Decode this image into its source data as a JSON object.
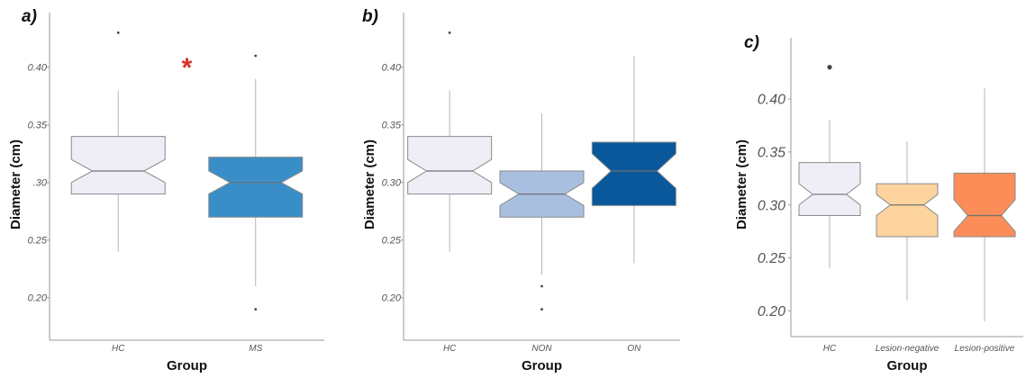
{
  "chart_data": [
    {
      "type": "boxplot",
      "panel_label": "a)",
      "xlabel": "Group",
      "ylabel": "Diameter (cm)",
      "ylim": [
        0.185,
        0.435
      ],
      "yticks": [
        0.2,
        0.25,
        0.3,
        0.35,
        0.4
      ],
      "ytick_labels": [
        "0.20",
        "0.25",
        ".30",
        "0.35",
        "0.40"
      ],
      "categories": [
        "HC",
        "MS"
      ],
      "boxes": [
        {
          "category": "HC",
          "whisker_low": 0.24,
          "q1": 0.29,
          "median": 0.31,
          "q3": 0.34,
          "whisker_high": 0.38,
          "notch_low": 0.3,
          "notch_high": 0.32,
          "fill": "#efeef7",
          "outliers": [
            0.43
          ]
        },
        {
          "category": "MS",
          "whisker_low": 0.21,
          "q1": 0.27,
          "median": 0.3,
          "q3": 0.322,
          "whisker_high": 0.39,
          "notch_low": 0.29,
          "notch_high": 0.31,
          "fill": "#3a8ec8",
          "outliers": [
            0.19,
            0.41
          ]
        }
      ],
      "annotations": [
        {
          "text": "*",
          "x_between": [
            0,
            1
          ],
          "y": 0.405,
          "color": "#d93328"
        }
      ]
    },
    {
      "type": "boxplot",
      "panel_label": "b)",
      "xlabel": "Group",
      "ylabel": "Diameter (cm)",
      "ylim": [
        0.185,
        0.435
      ],
      "yticks": [
        0.2,
        0.25,
        0.3,
        0.35,
        0.4
      ],
      "ytick_labels": [
        "0.20",
        "0.25",
        "0.30",
        "0.35",
        "0.40"
      ],
      "categories": [
        "HC",
        "NON",
        "ON"
      ],
      "boxes": [
        {
          "category": "HC",
          "whisker_low": 0.24,
          "q1": 0.29,
          "median": 0.31,
          "q3": 0.34,
          "whisker_high": 0.38,
          "notch_low": 0.3,
          "notch_high": 0.32,
          "fill": "#efeef7",
          "outliers": [
            0.43
          ]
        },
        {
          "category": "NON",
          "whisker_low": 0.22,
          "q1": 0.27,
          "median": 0.29,
          "q3": 0.31,
          "whisker_high": 0.36,
          "notch_low": 0.28,
          "notch_high": 0.3,
          "fill": "#a9bfdf",
          "outliers": [
            0.19,
            0.21
          ]
        },
        {
          "category": "ON",
          "whisker_low": 0.23,
          "q1": 0.28,
          "median": 0.31,
          "q3": 0.335,
          "whisker_high": 0.41,
          "notch_low": 0.295,
          "notch_high": 0.325,
          "fill": "#08589b",
          "outliers": []
        }
      ],
      "annotations": []
    },
    {
      "type": "boxplot",
      "panel_label": "c)",
      "xlabel": "Group",
      "ylabel": "Diameter (cm)",
      "ylim": [
        0.18,
        0.445
      ],
      "yticks": [
        0.2,
        0.25,
        0.3,
        0.35,
        0.4
      ],
      "ytick_labels": [
        "0.20",
        "0.25",
        "0.30",
        "0.35",
        "0.40"
      ],
      "categories": [
        "HC",
        "Lesion-negative",
        "Lesion-positive"
      ],
      "boxes": [
        {
          "category": "HC",
          "whisker_low": 0.24,
          "q1": 0.29,
          "median": 0.31,
          "q3": 0.34,
          "whisker_high": 0.38,
          "notch_low": 0.3,
          "notch_high": 0.32,
          "fill": "#efeef7",
          "outliers": [
            0.43
          ]
        },
        {
          "category": "Lesion-negative",
          "whisker_low": 0.21,
          "q1": 0.27,
          "median": 0.3,
          "q3": 0.32,
          "whisker_high": 0.36,
          "notch_low": 0.29,
          "notch_high": 0.31,
          "fill": "#fdd49e",
          "outliers": []
        },
        {
          "category": "Lesion-positive",
          "whisker_low": 0.19,
          "q1": 0.27,
          "median": 0.29,
          "q3": 0.33,
          "whisker_high": 0.41,
          "notch_low": 0.275,
          "notch_high": 0.305,
          "fill": "#fc8d59",
          "outliers": []
        }
      ],
      "annotations": []
    }
  ],
  "colors": {
    "axis": "#9a9a9a",
    "box_stroke": "#8a8a8a",
    "whisker": "#b5b5b5",
    "outlier": "#444444",
    "annotation": "#d93328"
  }
}
